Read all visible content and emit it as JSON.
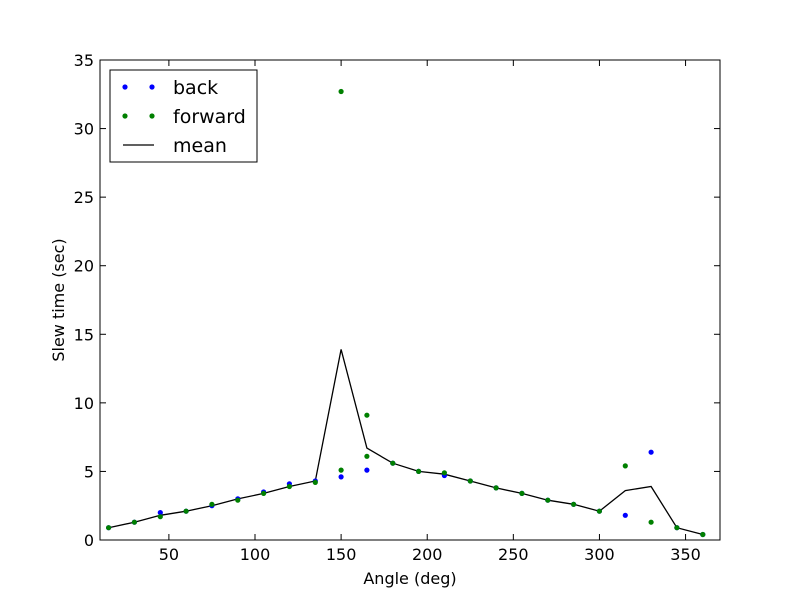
{
  "chart_data": {
    "type": "scatter",
    "title": "",
    "xlabel": "Angle (deg)",
    "ylabel": "Slew time (sec)",
    "xlim": [
      10,
      370
    ],
    "ylim": [
      0,
      35
    ],
    "xticks": [
      50,
      100,
      150,
      200,
      250,
      300,
      350
    ],
    "yticks": [
      0,
      5,
      10,
      15,
      20,
      25,
      30,
      35
    ],
    "grid": false,
    "legend_position": "top-left",
    "series": [
      {
        "name": "back",
        "kind": "points",
        "color": "#0000ff",
        "x": [
          15,
          30,
          45,
          60,
          75,
          90,
          105,
          120,
          135,
          150,
          165,
          180,
          195,
          210,
          225,
          240,
          255,
          270,
          285,
          300,
          315,
          330,
          345,
          360
        ],
        "y": [
          0.9,
          1.3,
          2.0,
          2.1,
          2.5,
          3.0,
          3.5,
          4.1,
          4.3,
          4.6,
          5.1,
          5.6,
          5.0,
          4.7,
          4.3,
          3.8,
          3.4,
          2.9,
          2.6,
          2.1,
          1.8,
          6.4,
          0.9,
          0.4
        ]
      },
      {
        "name": "forward",
        "kind": "points",
        "color": "#008000",
        "x": [
          15,
          30,
          45,
          60,
          75,
          90,
          105,
          120,
          135,
          150,
          150,
          165,
          165,
          180,
          195,
          210,
          225,
          240,
          255,
          270,
          285,
          300,
          315,
          330,
          345,
          360
        ],
        "y": [
          0.9,
          1.3,
          1.7,
          2.1,
          2.6,
          2.9,
          3.4,
          3.9,
          4.2,
          32.7,
          5.1,
          6.1,
          9.1,
          5.6,
          5.0,
          4.9,
          4.3,
          3.8,
          3.4,
          2.9,
          2.6,
          2.1,
          5.4,
          1.3,
          0.9,
          0.4
        ]
      },
      {
        "name": "mean",
        "kind": "line",
        "color": "#000000",
        "x": [
          15,
          30,
          45,
          60,
          75,
          90,
          105,
          120,
          135,
          150,
          165,
          180,
          195,
          210,
          225,
          240,
          255,
          270,
          285,
          300,
          315,
          330,
          345,
          360
        ],
        "y": [
          0.9,
          1.3,
          1.8,
          2.1,
          2.5,
          3.0,
          3.4,
          3.9,
          4.3,
          13.9,
          6.7,
          5.6,
          5.0,
          4.8,
          4.3,
          3.8,
          3.4,
          2.9,
          2.6,
          2.1,
          3.6,
          3.9,
          0.9,
          0.4
        ]
      }
    ]
  }
}
